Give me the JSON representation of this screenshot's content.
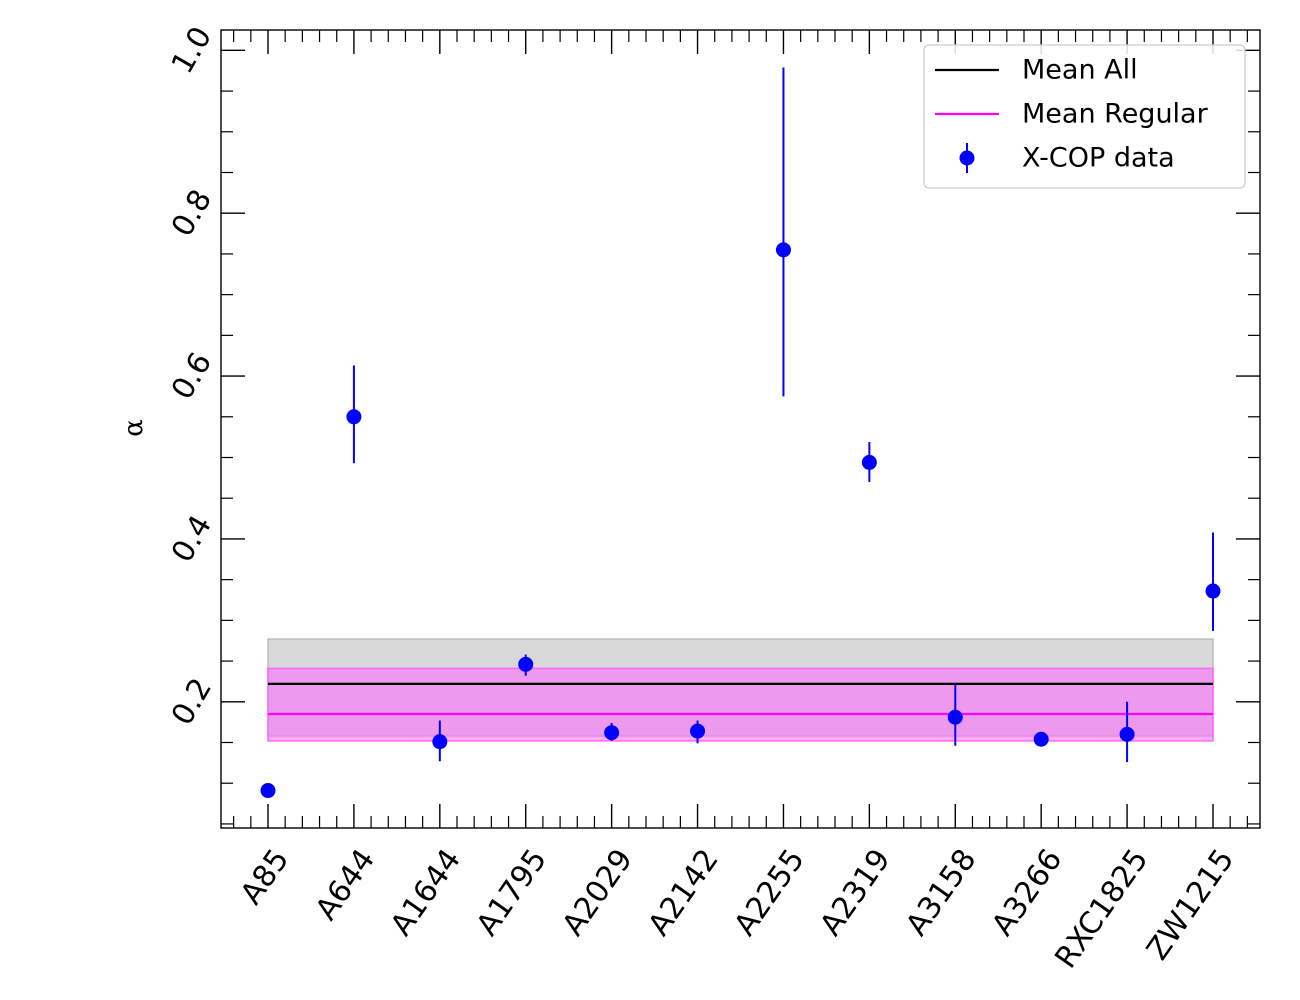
{
  "chart_data": {
    "type": "scatter",
    "title": "",
    "xlabel": "",
    "ylabel": "α",
    "categories": [
      "A85",
      "A644",
      "A1644",
      "A1795",
      "A2029",
      "A2142",
      "A2255",
      "A2319",
      "A3158",
      "A3266",
      "RXC1825",
      "ZW1215"
    ],
    "ylim": [
      0.045,
      1.025
    ],
    "yticks": [
      "0.2",
      "0.4",
      "0.6",
      "0.8",
      "1.0"
    ],
    "grid": false,
    "legend_position": "top-right",
    "series": [
      {
        "name": "X-COP data",
        "kind": "errorbar",
        "color": "#0000ff",
        "values": [
          0.091,
          0.55,
          0.151,
          0.246,
          0.162,
          0.164,
          0.755,
          0.494,
          0.181,
          0.154,
          0.16,
          0.336
        ],
        "err_low": [
          0.0,
          0.057,
          0.024,
          0.014,
          0.01,
          0.015,
          0.18,
          0.024,
          0.035,
          0.006,
          0.034,
          0.049
        ],
        "err_high": [
          0.0,
          0.063,
          0.026,
          0.012,
          0.012,
          0.013,
          0.224,
          0.025,
          0.04,
          0.006,
          0.04,
          0.072
        ]
      },
      {
        "name": "Mean All",
        "kind": "mean-line",
        "color": "#000000",
        "band_color": "#bebebe",
        "value": 0.222,
        "band": [
          0.158,
          0.277
        ]
      },
      {
        "name": "Mean Regular",
        "kind": "mean-line",
        "color": "#ff00ff",
        "band_color": "#ff66ff",
        "value": 0.185,
        "band": [
          0.152,
          0.241
        ]
      }
    ]
  }
}
